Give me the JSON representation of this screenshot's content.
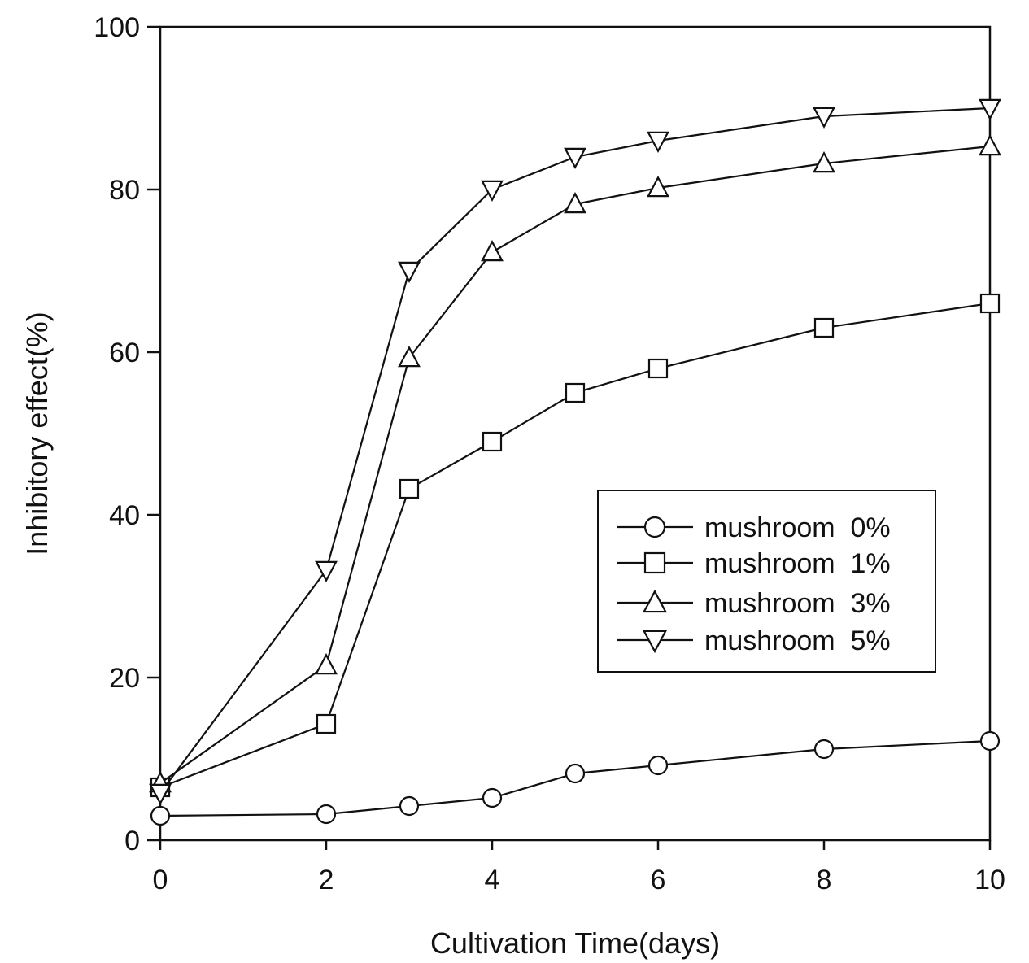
{
  "chart_data": {
    "type": "line",
    "xlabel": "Cultivation Time(days)",
    "ylabel": "Inhibitory effect(%)",
    "xlim": [
      0,
      10
    ],
    "ylim": [
      0,
      100
    ],
    "xticks": [
      "0",
      "2",
      "4",
      "6",
      "8",
      "10"
    ],
    "yticks": [
      "0",
      "20",
      "40",
      "60",
      "80",
      "100"
    ],
    "grid": false,
    "legend_position": "center-right",
    "series": [
      {
        "name": "mushroom  0%",
        "marker": "circle",
        "x": [
          0,
          2,
          3,
          4,
          5,
          6,
          8,
          10
        ],
        "y": [
          3,
          3.2,
          4.2,
          5.2,
          8.2,
          9.2,
          11.2,
          12.2
        ]
      },
      {
        "name": "mushroom  1%",
        "marker": "square",
        "x": [
          0,
          2,
          3,
          4,
          5,
          6,
          8,
          10
        ],
        "y": [
          6.5,
          14.3,
          43.2,
          49,
          55,
          58,
          63,
          66
        ]
      },
      {
        "name": "mushroom  3%",
        "marker": "triangle-up",
        "x": [
          0,
          2,
          3,
          4,
          5,
          6,
          8,
          10
        ],
        "y": [
          7,
          21.5,
          59.3,
          72.3,
          78.2,
          80.2,
          83.2,
          85.3
        ]
      },
      {
        "name": "mushroom  5%",
        "marker": "triangle-down",
        "x": [
          0,
          2,
          3,
          4,
          5,
          6,
          8,
          10
        ],
        "y": [
          5.8,
          33.2,
          70,
          80,
          84,
          86,
          89,
          90
        ]
      }
    ]
  }
}
